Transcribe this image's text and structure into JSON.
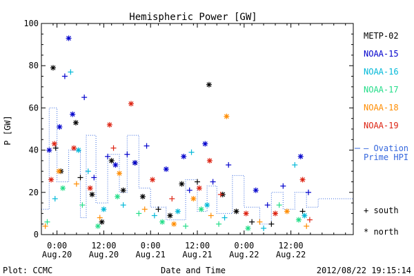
{
  "chart_data": {
    "type": "scatter",
    "title": "Hemispheric Power [GW]",
    "xlabel": "Date and Time",
    "ylabel": "P [GW]",
    "ylim": [
      0,
      100
    ],
    "xlim": [
      "2012-08-19T20:00",
      "2012-08-23T04:00"
    ],
    "y_ticks": [
      0,
      20,
      40,
      60,
      80,
      100
    ],
    "x_ticks": [
      {
        "time": "2012-08-20T00:00",
        "line1": "0:00",
        "line2": "Aug.20"
      },
      {
        "time": "2012-08-20T12:00",
        "line1": "12:00",
        "line2": "Aug.20"
      },
      {
        "time": "2012-08-21T00:00",
        "line1": "0:00",
        "line2": "Aug.21"
      },
      {
        "time": "2012-08-21T12:00",
        "line1": "12:00",
        "line2": "Aug.21"
      },
      {
        "time": "2012-08-22T00:00",
        "line1": "0:00",
        "line2": "Aug.22"
      },
      {
        "time": "2012-08-22T12:00",
        "line1": "12:00",
        "line2": "Aug.22"
      }
    ],
    "grid": false,
    "legend_position": "right",
    "markers": {
      "south": "+",
      "north": "*"
    },
    "marker_legend": [
      "+ south",
      "* north"
    ],
    "series": [
      {
        "name": "METP-02",
        "color": "#000000",
        "points": [
          {
            "t": "2012-08-19T23:00",
            "p": 79,
            "hem": "north"
          },
          {
            "t": "2012-08-19T23:40",
            "p": 41,
            "hem": "south"
          },
          {
            "t": "2012-08-20T01:00",
            "p": 30,
            "hem": "north"
          },
          {
            "t": "2012-08-20T04:50",
            "p": 53,
            "hem": "north"
          },
          {
            "t": "2012-08-20T06:00",
            "p": 27,
            "hem": "south"
          },
          {
            "t": "2012-08-20T09:00",
            "p": 19,
            "hem": "north"
          },
          {
            "t": "2012-08-20T11:30",
            "p": 6,
            "hem": "north"
          },
          {
            "t": "2012-08-20T14:00",
            "p": 35,
            "hem": "north"
          },
          {
            "t": "2012-08-20T17:00",
            "p": 21,
            "hem": "north"
          },
          {
            "t": "2012-08-20T20:00",
            "p": 34,
            "hem": "north"
          },
          {
            "t": "2012-08-20T22:00",
            "p": 18,
            "hem": "north"
          },
          {
            "t": "2012-08-21T02:00",
            "p": 12,
            "hem": "south"
          },
          {
            "t": "2012-08-21T05:00",
            "p": 9,
            "hem": "north"
          },
          {
            "t": "2012-08-21T08:00",
            "p": 24,
            "hem": "north"
          },
          {
            "t": "2012-08-21T12:00",
            "p": 25,
            "hem": "south"
          },
          {
            "t": "2012-08-21T15:00",
            "p": 71,
            "hem": "north"
          },
          {
            "t": "2012-08-21T18:30",
            "p": 19,
            "hem": "north"
          },
          {
            "t": "2012-08-21T22:00",
            "p": 11,
            "hem": "north"
          },
          {
            "t": "2012-08-22T02:00",
            "p": 6,
            "hem": "south"
          },
          {
            "t": "2012-08-22T07:00",
            "p": 5,
            "hem": "south"
          },
          {
            "t": "2012-08-22T15:00",
            "p": 11,
            "hem": "south"
          }
        ]
      },
      {
        "name": "NOAA-15",
        "color": "#0000cc",
        "points": [
          {
            "t": "2012-08-19T22:00",
            "p": 40,
            "hem": "north"
          },
          {
            "t": "2012-08-20T02:00",
            "p": 75,
            "hem": "south"
          },
          {
            "t": "2012-08-20T03:00",
            "p": 93,
            "hem": "north"
          },
          {
            "t": "2012-08-20T04:00",
            "p": 57,
            "hem": "north"
          },
          {
            "t": "2012-08-20T07:00",
            "p": 65,
            "hem": "south"
          },
          {
            "t": "2012-08-20T00:40",
            "p": 51,
            "hem": "north"
          },
          {
            "t": "2012-08-20T09:30",
            "p": 27,
            "hem": "south"
          },
          {
            "t": "2012-08-20T13:00",
            "p": 37,
            "hem": "south"
          },
          {
            "t": "2012-08-20T15:00",
            "p": 33,
            "hem": "north"
          },
          {
            "t": "2012-08-20T18:00",
            "p": 38,
            "hem": "south"
          },
          {
            "t": "2012-08-20T20:00",
            "p": 34,
            "hem": "north"
          },
          {
            "t": "2012-08-20T23:00",
            "p": 42,
            "hem": "south"
          },
          {
            "t": "2012-08-21T04:00",
            "p": 31,
            "hem": "north"
          },
          {
            "t": "2012-08-21T08:30",
            "p": 37,
            "hem": "north"
          },
          {
            "t": "2012-08-21T10:00",
            "p": 21,
            "hem": "south"
          },
          {
            "t": "2012-08-21T14:00",
            "p": 43,
            "hem": "north"
          },
          {
            "t": "2012-08-21T16:00",
            "p": 25,
            "hem": "south"
          },
          {
            "t": "2012-08-21T20:00",
            "p": 33,
            "hem": "south"
          },
          {
            "t": "2012-08-22T03:00",
            "p": 21,
            "hem": "north"
          },
          {
            "t": "2012-08-22T06:00",
            "p": 14,
            "hem": "south"
          },
          {
            "t": "2012-08-22T10:00",
            "p": 23,
            "hem": "south"
          },
          {
            "t": "2012-08-22T14:30",
            "p": 37,
            "hem": "north"
          },
          {
            "t": "2012-08-22T16:30",
            "p": 20,
            "hem": "south"
          }
        ]
      },
      {
        "name": "NOAA-16",
        "color": "#00b8d8",
        "points": [
          {
            "t": "2012-08-19T23:30",
            "p": 17,
            "hem": "south"
          },
          {
            "t": "2012-08-20T03:30",
            "p": 77,
            "hem": "south"
          },
          {
            "t": "2012-08-20T05:30",
            "p": 40,
            "hem": "north"
          },
          {
            "t": "2012-08-20T08:00",
            "p": 30,
            "hem": "south"
          },
          {
            "t": "2012-08-20T12:00",
            "p": 12,
            "hem": "north"
          },
          {
            "t": "2012-08-20T17:00",
            "p": 14,
            "hem": "south"
          },
          {
            "t": "2012-08-21T01:00",
            "p": 9,
            "hem": "south"
          },
          {
            "t": "2012-08-21T07:00",
            "p": 11,
            "hem": "north"
          },
          {
            "t": "2012-08-21T10:30",
            "p": 39,
            "hem": "south"
          },
          {
            "t": "2012-08-21T14:30",
            "p": 14,
            "hem": "north"
          },
          {
            "t": "2012-08-21T19:00",
            "p": 8,
            "hem": "south"
          },
          {
            "t": "2012-08-22T05:00",
            "p": 3,
            "hem": "south"
          },
          {
            "t": "2012-08-22T13:00",
            "p": 33,
            "hem": "south"
          },
          {
            "t": "2012-08-22T15:30",
            "p": 9,
            "hem": "north"
          }
        ]
      },
      {
        "name": "NOAA-17",
        "color": "#22dd88",
        "points": [
          {
            "t": "2012-08-19T21:30",
            "p": 6,
            "hem": "south"
          },
          {
            "t": "2012-08-20T01:30",
            "p": 22,
            "hem": "north"
          },
          {
            "t": "2012-08-20T06:30",
            "p": 14,
            "hem": "south"
          },
          {
            "t": "2012-08-20T10:30",
            "p": 4,
            "hem": "north"
          },
          {
            "t": "2012-08-20T15:30",
            "p": 18,
            "hem": "north"
          },
          {
            "t": "2012-08-20T21:00",
            "p": 10,
            "hem": "south"
          },
          {
            "t": "2012-08-21T03:00",
            "p": 6,
            "hem": "north"
          },
          {
            "t": "2012-08-21T09:00",
            "p": 4,
            "hem": "south"
          },
          {
            "t": "2012-08-21T13:00",
            "p": 12,
            "hem": "north"
          },
          {
            "t": "2012-08-21T17:30",
            "p": 5,
            "hem": "south"
          },
          {
            "t": "2012-08-22T01:00",
            "p": 3,
            "hem": "north"
          },
          {
            "t": "2012-08-22T09:00",
            "p": 14,
            "hem": "south"
          },
          {
            "t": "2012-08-22T14:00",
            "p": 7,
            "hem": "north"
          }
        ]
      },
      {
        "name": "NOAA-18",
        "color": "#ff8c00",
        "points": [
          {
            "t": "2012-08-19T21:00",
            "p": 4,
            "hem": "south"
          },
          {
            "t": "2012-08-20T00:30",
            "p": 30,
            "hem": "north"
          },
          {
            "t": "2012-08-20T05:00",
            "p": 24,
            "hem": "south"
          },
          {
            "t": "2012-08-20T11:00",
            "p": 8,
            "hem": "south"
          },
          {
            "t": "2012-08-20T16:00",
            "p": 29,
            "hem": "north"
          },
          {
            "t": "2012-08-20T22:30",
            "p": 12,
            "hem": "south"
          },
          {
            "t": "2012-08-21T06:00",
            "p": 5,
            "hem": "north"
          },
          {
            "t": "2012-08-21T11:00",
            "p": 17,
            "hem": "north"
          },
          {
            "t": "2012-08-21T15:30",
            "p": 9,
            "hem": "south"
          },
          {
            "t": "2012-08-21T19:30",
            "p": 56,
            "hem": "north"
          },
          {
            "t": "2012-08-22T04:00",
            "p": 6,
            "hem": "south"
          },
          {
            "t": "2012-08-22T11:00",
            "p": 11,
            "hem": "north"
          },
          {
            "t": "2012-08-22T16:00",
            "p": 4,
            "hem": "south"
          }
        ]
      },
      {
        "name": "NOAA-19",
        "color": "#dd2211",
        "points": [
          {
            "t": "2012-08-19T22:30",
            "p": 26,
            "hem": "north"
          },
          {
            "t": "2012-08-19T23:20",
            "p": 43,
            "hem": "north"
          },
          {
            "t": "2012-08-20T04:20",
            "p": 41,
            "hem": "north"
          },
          {
            "t": "2012-08-20T08:30",
            "p": 22,
            "hem": "north"
          },
          {
            "t": "2012-08-20T13:30",
            "p": 52,
            "hem": "north"
          },
          {
            "t": "2012-08-20T14:30",
            "p": 41,
            "hem": "south"
          },
          {
            "t": "2012-08-20T19:00",
            "p": 62,
            "hem": "north"
          },
          {
            "t": "2012-08-21T00:30",
            "p": 26,
            "hem": "north"
          },
          {
            "t": "2012-08-21T05:30",
            "p": 17,
            "hem": "south"
          },
          {
            "t": "2012-08-21T12:30",
            "p": 22,
            "hem": "north"
          },
          {
            "t": "2012-08-21T15:10",
            "p": 35,
            "hem": "north"
          },
          {
            "t": "2012-08-21T18:00",
            "p": 19,
            "hem": "south"
          },
          {
            "t": "2012-08-22T00:30",
            "p": 10,
            "hem": "north"
          },
          {
            "t": "2012-08-22T08:00",
            "p": 10,
            "hem": "north"
          },
          {
            "t": "2012-08-22T15:00",
            "p": 26,
            "hem": "north"
          },
          {
            "t": "2012-08-22T16:50",
            "p": 7,
            "hem": "south"
          }
        ]
      },
      {
        "name": "Ovation Prime HPI",
        "color": "#3366dd",
        "style": "dotted-step",
        "legend_lines": [
          "– Ovation",
          "Prime HPI"
        ],
        "points": [
          {
            "t": "2012-08-19T20:00",
            "p": 12
          },
          {
            "t": "2012-08-19T22:00",
            "p": 60
          },
          {
            "t": "2012-08-20T00:00",
            "p": 25
          },
          {
            "t": "2012-08-20T03:00",
            "p": 40
          },
          {
            "t": "2012-08-20T06:00",
            "p": 8
          },
          {
            "t": "2012-08-20T07:30",
            "p": 47
          },
          {
            "t": "2012-08-20T10:00",
            "p": 15
          },
          {
            "t": "2012-08-20T13:00",
            "p": 38
          },
          {
            "t": "2012-08-20T16:00",
            "p": 20
          },
          {
            "t": "2012-08-20T18:00",
            "p": 47
          },
          {
            "t": "2012-08-20T21:00",
            "p": 22
          },
          {
            "t": "2012-08-21T00:00",
            "p": 13
          },
          {
            "t": "2012-08-21T04:00",
            "p": 7
          },
          {
            "t": "2012-08-21T09:00",
            "p": 26
          },
          {
            "t": "2012-08-21T12:00",
            "p": 11
          },
          {
            "t": "2012-08-21T14:30",
            "p": 23
          },
          {
            "t": "2012-08-21T17:00",
            "p": 10
          },
          {
            "t": "2012-08-21T21:00",
            "p": 28
          },
          {
            "t": "2012-08-22T00:00",
            "p": 13
          },
          {
            "t": "2012-08-22T04:00",
            "p": 5
          },
          {
            "t": "2012-08-22T07:00",
            "p": 20
          },
          {
            "t": "2012-08-22T10:00",
            "p": 12
          },
          {
            "t": "2012-08-22T13:00",
            "p": 20
          },
          {
            "t": "2012-08-22T16:00",
            "p": 13
          },
          {
            "t": "2012-08-22T19:00",
            "p": 17
          }
        ]
      }
    ]
  },
  "footer": {
    "left": "Plot: CCMC",
    "right": "2012/08/22 19:15:14"
  }
}
